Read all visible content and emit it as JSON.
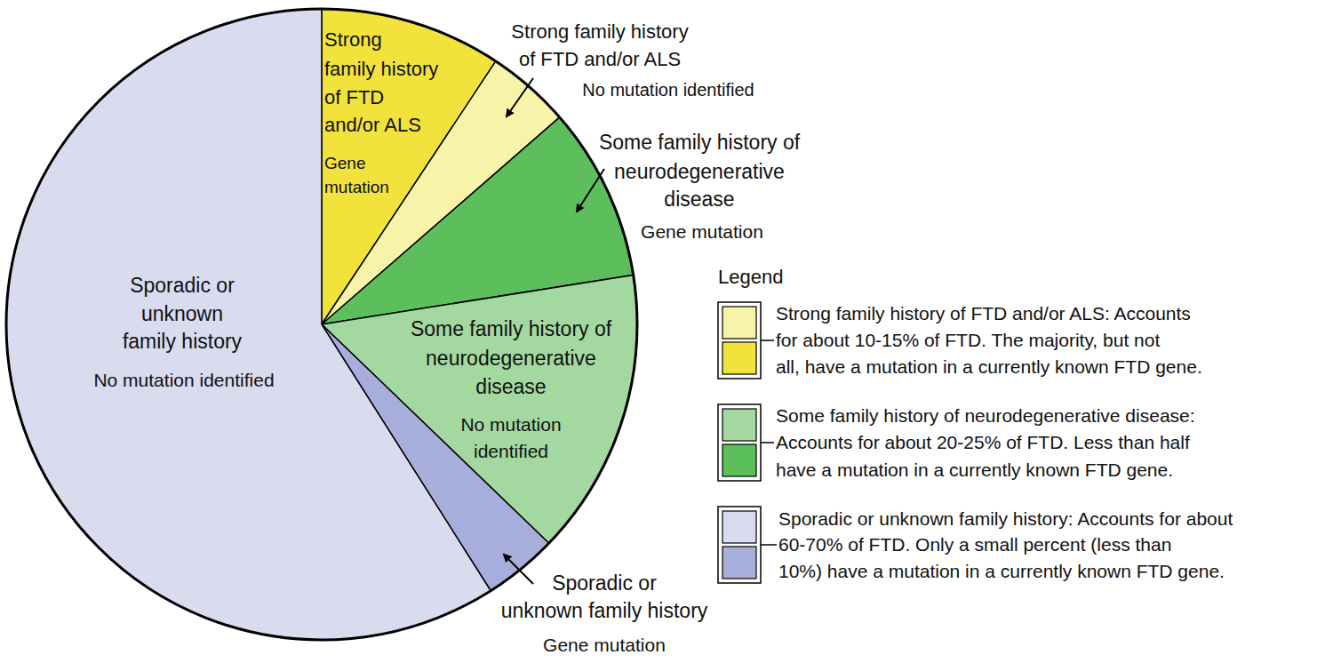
{
  "chart_data": {
    "type": "pie",
    "categories": [
      "Strong family history of FTD and/or ALS",
      "Strong family history of FTD and/or ALS",
      "Some family history of neurodegenerative disease",
      "Some family history of neurodegenerative disease",
      "Sporadic or unknown family history",
      "Sporadic or unknown family history"
    ],
    "mutation_status": [
      "Gene mutation",
      "No mutation identified",
      "Gene mutation",
      "No mutation identified",
      "Gene mutation",
      "No mutation identified"
    ],
    "values": [
      9.3,
      4.3,
      8.9,
      14.7,
      3.8,
      59.0
    ],
    "colors": [
      "#f2e33c",
      "#f7f3a8",
      "#5cbf5c",
      "#a3d9a0",
      "#a7aedb",
      "#d9dbef"
    ],
    "tick_labels": false,
    "legend_title": "Legend",
    "legend_entries": [
      {
        "text": "Strong family history of FTD and/or ALS: Accounts for about 10-15% of FTD. The majority, but not all, have a mutation in a currently known FTD gene.",
        "colors": [
          "#f7f3a8",
          "#f2e33c"
        ]
      },
      {
        "text": "Some family history of neurodegenerative disease: Accounts for about 20-25% of FTD. Less than half have a mutation in a currently known FTD gene.",
        "colors": [
          "#a3d9a0",
          "#5cbf5c"
        ]
      },
      {
        "text": "Sporadic or unknown family history: Accounts for about 60-70% of FTD. Only a small percent (less than 10%) have a mutation in a currently known FTD gene.",
        "colors": [
          "#d9dbef",
          "#a7aedb"
        ]
      }
    ]
  }
}
